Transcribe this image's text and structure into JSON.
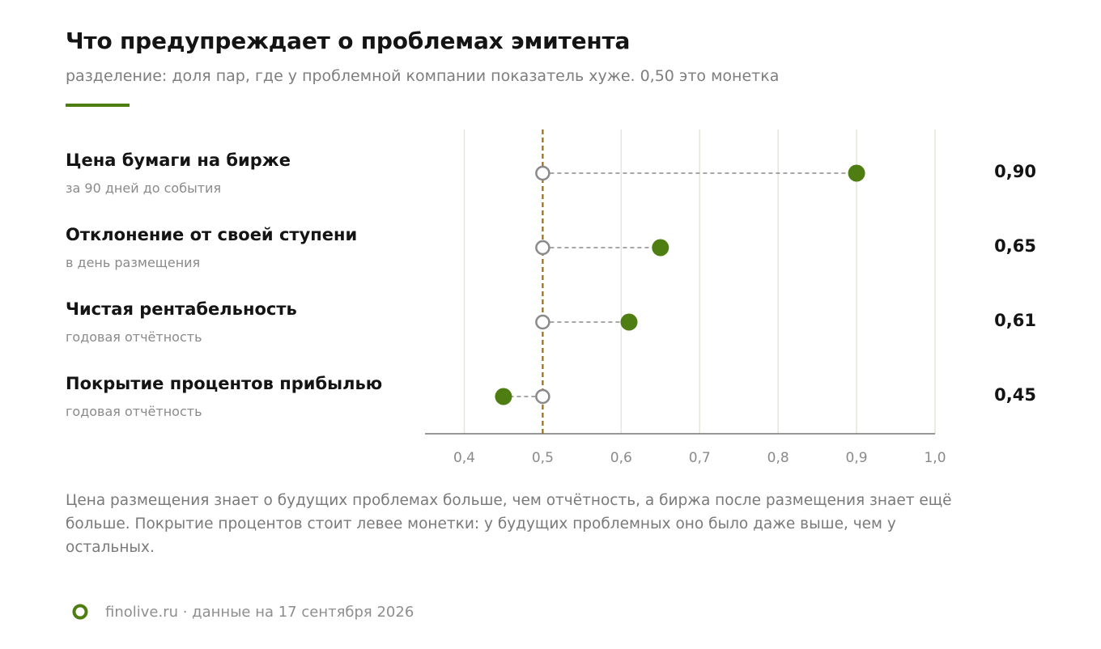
{
  "header": {
    "title": "Что предупреждает о проблемах эмитента",
    "subtitle": "разделение: доля пар, где у проблемной компании показатель хуже. 0,50 это монетка"
  },
  "colors": {
    "accent": "#4e7d12",
    "baseline": "#9a6d14",
    "open_marker": "#8a8a8a",
    "grid": "#e6e5dc",
    "axis": "#777777"
  },
  "chart_data": {
    "type": "dumbbell",
    "title": "Что предупреждает о проблемах эмитента",
    "subtitle": "разделение: доля пар, где у проблемной компании показатель хуже. 0,50 это монетка",
    "baseline": 0.5,
    "xlim": [
      0.35,
      1.0
    ],
    "x_ticks": [
      0.4,
      0.5,
      0.6,
      0.7,
      0.8,
      0.9,
      1.0
    ],
    "x_tick_labels": [
      "0,4",
      "0,5",
      "0,6",
      "0,7",
      "0,8",
      "0,9",
      "1,0"
    ],
    "grid": true,
    "rows": [
      {
        "label": "Цена бумаги на бирже",
        "sublabel": "за 90 дней до события",
        "value": 0.9,
        "value_label": "0,90"
      },
      {
        "label": "Отклонение от своей ступени",
        "sublabel": "в день размещения",
        "value": 0.65,
        "value_label": "0,65"
      },
      {
        "label": "Чистая рентабельность",
        "sublabel": "годовая отчётность",
        "value": 0.61,
        "value_label": "0,61"
      },
      {
        "label": "Покрытие процентов прибылью",
        "sublabel": "годовая отчётность",
        "value": 0.45,
        "value_label": "0,45"
      }
    ]
  },
  "note": "Цена размещения знает о будущих проблемах больше, чем отчётность, а биржа после размещения знает ещё больше. Покрытие процентов стоит левее монетки: у будущих проблемных оно было даже выше, чем у остальных.",
  "footer": {
    "icon": "finolive-logo-icon",
    "text": "finolive.ru · данные на 17 сентября 2026"
  }
}
